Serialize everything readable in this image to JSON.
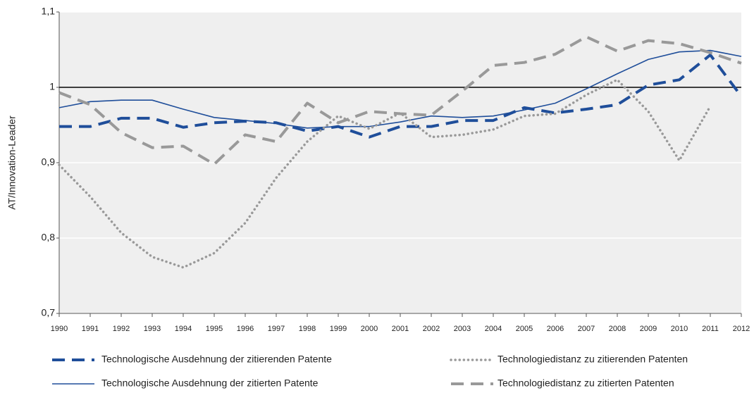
{
  "chart_data": {
    "type": "line",
    "ylabel": "AT/Innovation-Leader",
    "categories": [
      "1990",
      "1991",
      "1992",
      "1993",
      "1994",
      "1995",
      "1996",
      "1997",
      "1998",
      "1999",
      "2000",
      "2001",
      "2002",
      "2003",
      "2004",
      "2005",
      "2006",
      "2007",
      "2008",
      "2009",
      "2010",
      "2011",
      "2012"
    ],
    "ylim": [
      0.7,
      1.1
    ],
    "yticks": [
      {
        "value": 0.7,
        "label": "0,7"
      },
      {
        "value": 0.8,
        "label": "0,8"
      },
      {
        "value": 0.9,
        "label": "0,9"
      },
      1,
      {
        "value": 1.1,
        "label": "1,1"
      }
    ],
    "grid": true,
    "reference_line": 1,
    "legend": "bottom",
    "series": [
      {
        "name": "Technologische Ausdehnung der zitierenden Patente",
        "color": "#1f4e9a",
        "style": "dashed-thick",
        "values": [
          0.948,
          0.948,
          0.959,
          0.959,
          0.947,
          0.953,
          0.955,
          0.953,
          0.942,
          0.948,
          0.934,
          0.948,
          0.948,
          0.956,
          0.956,
          0.973,
          0.966,
          0.971,
          0.977,
          1.003,
          1.01,
          1.043,
          0.988
        ]
      },
      {
        "name": "Technologische Ausdehnung der zitierten Patente",
        "color": "#1f4e9a",
        "style": "solid",
        "values": [
          0.973,
          0.981,
          0.983,
          0.983,
          0.971,
          0.96,
          0.956,
          0.952,
          0.946,
          0.948,
          0.948,
          0.954,
          0.962,
          0.96,
          0.962,
          0.97,
          0.979,
          0.998,
          1.018,
          1.037,
          1.047,
          1.049,
          1.041
        ]
      },
      {
        "name": "Technologiedistanz zu zitierenden Patenten",
        "color": "#999999",
        "style": "dotted",
        "values": [
          0.897,
          0.855,
          0.807,
          0.775,
          0.761,
          0.78,
          0.82,
          0.88,
          0.928,
          0.962,
          0.945,
          0.966,
          0.934,
          0.937,
          0.944,
          0.962,
          0.965,
          0.99,
          1.01,
          0.968,
          0.903,
          0.975,
          null
        ]
      },
      {
        "name": "Technologiedistanz zu zitierten Patenten",
        "color": "#999999",
        "style": "dashed-thick",
        "values": [
          0.993,
          0.977,
          0.94,
          0.92,
          0.922,
          0.898,
          0.937,
          0.928,
          0.979,
          0.953,
          0.968,
          0.965,
          0.963,
          0.995,
          1.029,
          1.033,
          1.044,
          1.067,
          1.048,
          1.062,
          1.058,
          1.046,
          1.032
        ]
      }
    ]
  }
}
